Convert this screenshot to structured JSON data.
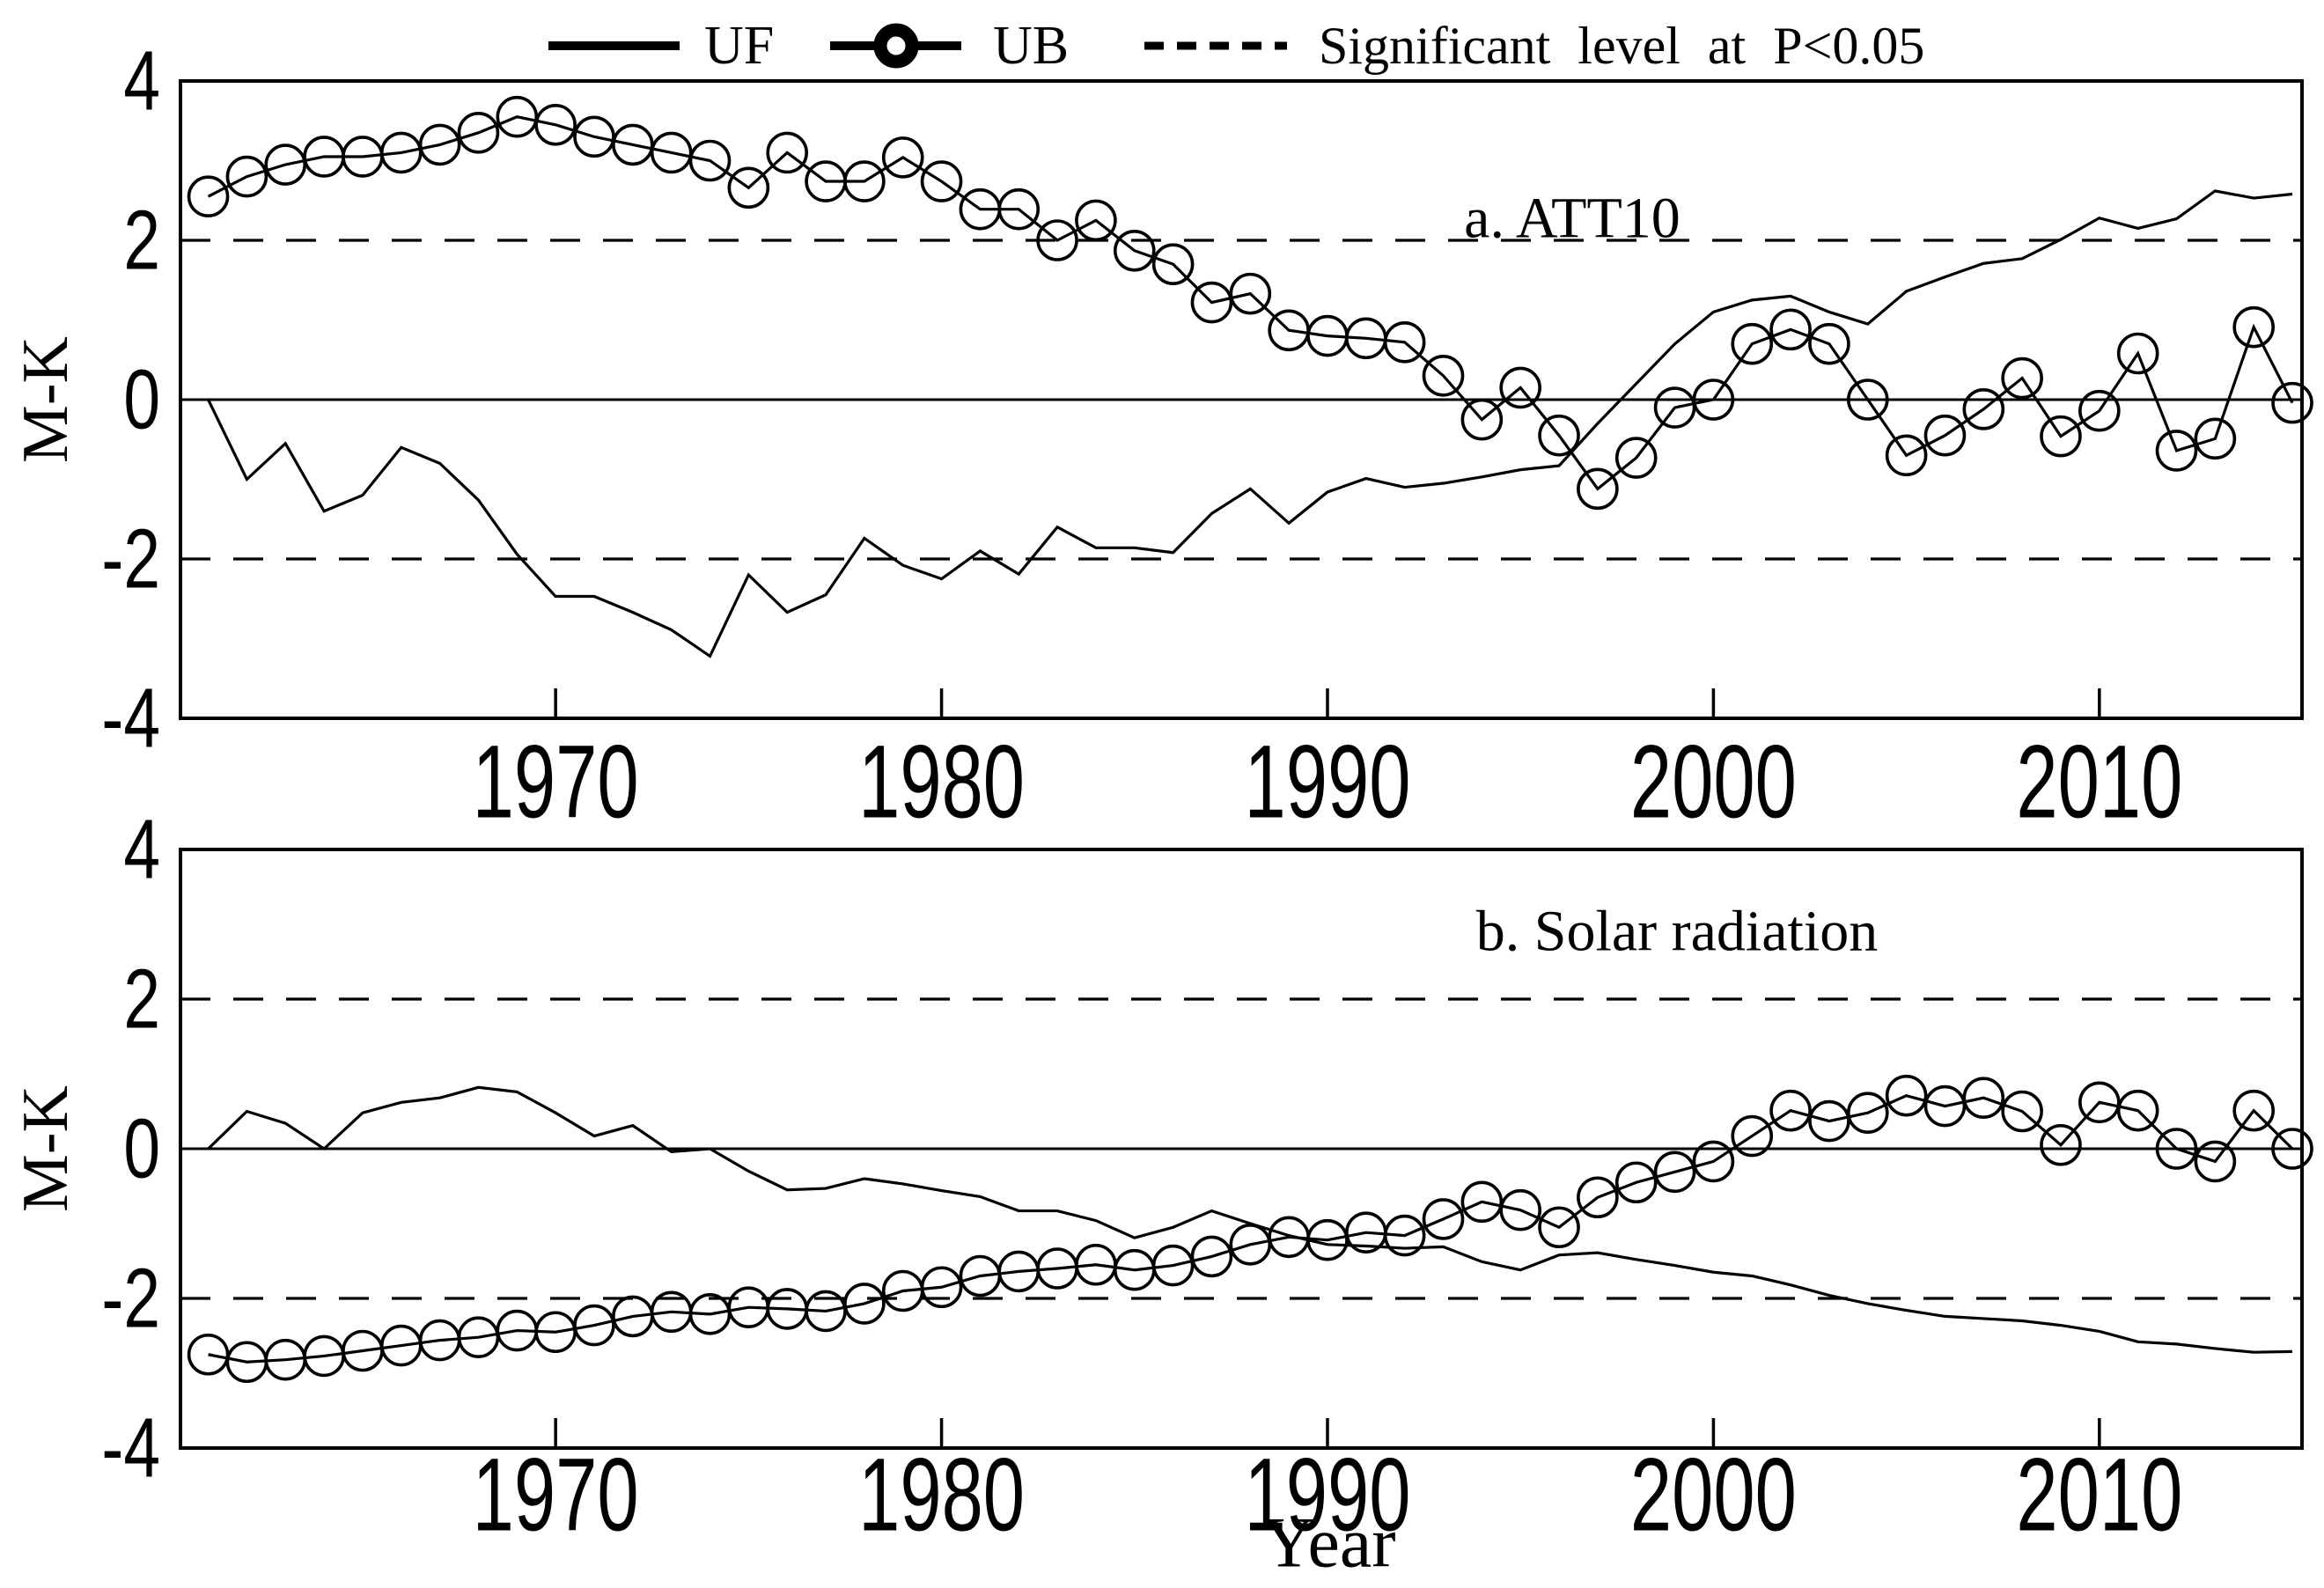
{
  "figure": {
    "background_color": "#ffffff",
    "line_color": "#000000"
  },
  "legend": {
    "uf_label": "UF",
    "ub_label": "UB",
    "sig_label": "Significant level at P<0.05"
  },
  "axes": {
    "ylabel": "M-K",
    "xlabel": "Year",
    "ylim": [
      -4,
      4
    ],
    "xlim": [
      1960.28,
      2015.25
    ],
    "y_ticks": [
      4,
      2,
      0,
      -2,
      -4
    ],
    "x_ticks": [
      1970,
      1980,
      1990,
      2000,
      2010
    ],
    "significance_level": 2,
    "grid": "off",
    "legend_position": "top"
  },
  "chart_data": [
    {
      "type": "line",
      "title": "a. ATT10",
      "xlabel": "",
      "ylabel": "M-K",
      "ylim": [
        -4,
        4
      ],
      "x": [
        1961,
        1962,
        1963,
        1964,
        1965,
        1966,
        1967,
        1968,
        1969,
        1970,
        1971,
        1972,
        1973,
        1974,
        1975,
        1976,
        1977,
        1978,
        1979,
        1980,
        1981,
        1982,
        1983,
        1984,
        1985,
        1986,
        1987,
        1988,
        1989,
        1990,
        1991,
        1992,
        1993,
        1994,
        1995,
        1996,
        1997,
        1998,
        1999,
        2000,
        2001,
        2002,
        2003,
        2004,
        2005,
        2006,
        2007,
        2008,
        2009,
        2010,
        2011,
        2012,
        2013,
        2014,
        2015
      ],
      "series": [
        {
          "name": "UF",
          "marker": "none",
          "values": [
            0.0,
            -1.0,
            -0.55,
            -1.4,
            -1.2,
            -0.6,
            -0.8,
            -1.26,
            -1.94,
            -2.47,
            -2.47,
            -2.67,
            -2.89,
            -3.22,
            -2.2,
            -2.67,
            -2.45,
            -1.74,
            -2.08,
            -2.25,
            -1.9,
            -2.19,
            -1.6,
            -1.86,
            -1.86,
            -1.92,
            -1.43,
            -1.12,
            -1.55,
            -1.16,
            -0.99,
            -1.1,
            -1.05,
            -0.97,
            -0.88,
            -0.83,
            -0.3,
            0.2,
            0.7,
            1.1,
            1.25,
            1.3,
            1.1,
            0.95,
            1.36,
            1.54,
            1.71,
            1.77,
            2.01,
            2.28,
            2.15,
            2.27,
            2.62,
            2.53,
            2.58
          ]
        },
        {
          "name": "UB",
          "marker": "circle",
          "values": [
            2.55,
            2.8,
            2.95,
            3.05,
            3.05,
            3.1,
            3.2,
            3.35,
            3.55,
            3.45,
            3.3,
            3.2,
            3.1,
            3.0,
            2.66,
            3.1,
            2.74,
            2.74,
            3.04,
            2.74,
            2.39,
            2.39,
            2.0,
            2.25,
            1.87,
            1.7,
            1.22,
            1.33,
            0.87,
            0.8,
            0.77,
            0.72,
            0.3,
            -0.25,
            0.15,
            -0.45,
            -1.12,
            -0.73,
            -0.1,
            0.0,
            0.7,
            0.88,
            0.7,
            0.0,
            -0.7,
            -0.45,
            -0.12,
            0.27,
            -0.46,
            -0.14,
            0.58,
            -0.64,
            -0.49,
            0.91,
            -0.04
          ]
        }
      ]
    },
    {
      "type": "line",
      "title": "b. Solar radiation",
      "xlabel": "Year",
      "ylabel": "M-K",
      "ylim": [
        -4,
        4
      ],
      "x": [
        1961,
        1962,
        1963,
        1964,
        1965,
        1966,
        1967,
        1968,
        1969,
        1970,
        1971,
        1972,
        1973,
        1974,
        1975,
        1976,
        1977,
        1978,
        1979,
        1980,
        1981,
        1982,
        1983,
        1984,
        1985,
        1986,
        1987,
        1988,
        1989,
        1990,
        1991,
        1992,
        1993,
        1994,
        1995,
        1996,
        1997,
        1998,
        1999,
        2000,
        2001,
        2002,
        2003,
        2004,
        2005,
        2006,
        2007,
        2008,
        2009,
        2010,
        2011,
        2012,
        2013,
        2014,
        2015
      ],
      "series": [
        {
          "name": "UF",
          "marker": "none",
          "values": [
            0.0,
            0.5,
            0.34,
            0.0,
            0.48,
            0.62,
            0.68,
            0.82,
            0.76,
            0.48,
            0.17,
            0.31,
            -0.04,
            0.0,
            -0.3,
            -0.55,
            -0.53,
            -0.4,
            -0.47,
            -0.56,
            -0.64,
            -0.83,
            -0.83,
            -0.96,
            -1.19,
            -1.05,
            -0.83,
            -1.0,
            -1.16,
            -1.28,
            -1.3,
            -1.33,
            -1.31,
            -1.51,
            -1.62,
            -1.42,
            -1.39,
            -1.48,
            -1.56,
            -1.65,
            -1.7,
            -1.82,
            -1.96,
            -2.07,
            -2.16,
            -2.24,
            -2.27,
            -2.3,
            -2.36,
            -2.44,
            -2.58,
            -2.61,
            -2.67,
            -2.72,
            -2.71
          ]
        },
        {
          "name": "UB",
          "marker": "circle",
          "values": [
            -2.75,
            -2.85,
            -2.82,
            -2.77,
            -2.7,
            -2.63,
            -2.56,
            -2.52,
            -2.43,
            -2.45,
            -2.36,
            -2.24,
            -2.18,
            -2.21,
            -2.12,
            -2.14,
            -2.17,
            -2.07,
            -1.9,
            -1.85,
            -1.7,
            -1.64,
            -1.6,
            -1.55,
            -1.62,
            -1.56,
            -1.44,
            -1.28,
            -1.18,
            -1.22,
            -1.12,
            -1.16,
            -0.94,
            -0.71,
            -0.82,
            -1.05,
            -0.65,
            -0.45,
            -0.31,
            -0.17,
            0.17,
            0.51,
            0.37,
            0.48,
            0.71,
            0.57,
            0.68,
            0.5,
            0.05,
            0.62,
            0.51,
            0.0,
            -0.17,
            0.51,
            0.0
          ]
        }
      ]
    }
  ]
}
